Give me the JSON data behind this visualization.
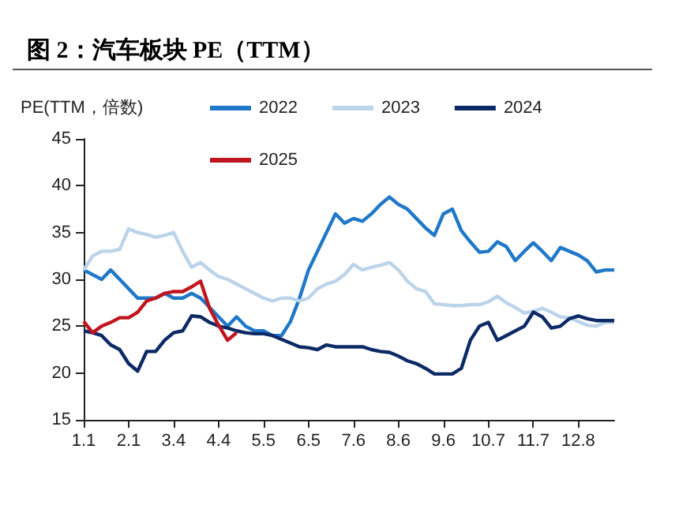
{
  "chart_data": {
    "type": "line",
    "title": "图 2：汽车板块 PE（TTM）",
    "ylabel": "PE(TTM，倍数)",
    "categories": [
      "1.1",
      null,
      null,
      null,
      null,
      "2.1",
      null,
      null,
      null,
      null,
      "3.4",
      null,
      null,
      null,
      null,
      "4.4",
      null,
      null,
      null,
      null,
      "5.5",
      null,
      null,
      null,
      null,
      "6.5",
      null,
      null,
      null,
      null,
      "7.6",
      null,
      null,
      null,
      null,
      "8.6",
      null,
      null,
      null,
      null,
      "9.6",
      null,
      null,
      null,
      null,
      "10.7",
      null,
      null,
      null,
      null,
      "11.7",
      null,
      null,
      null,
      null,
      "12.8",
      null,
      null,
      null,
      null
    ],
    "series": [
      {
        "name": "2022",
        "color": "#1f78c8",
        "values": [
          31,
          30.5,
          30,
          31,
          30,
          29,
          28,
          28,
          28,
          28.5,
          28,
          28,
          28.5,
          28,
          27,
          26,
          25,
          26,
          25,
          24.5,
          24.5,
          24,
          24,
          25.5,
          28,
          31,
          33,
          35,
          37,
          36,
          36.5,
          36.2,
          37,
          38,
          38.8,
          38,
          37.5,
          36.5,
          35.5,
          34.7,
          37,
          37.5,
          35.2,
          34,
          32.9,
          33,
          34,
          33.5,
          32,
          33,
          33.9,
          33,
          32,
          33.4,
          33,
          32.6,
          32,
          30.8,
          31,
          31
        ]
      },
      {
        "name": "2023",
        "color": "#bcd4ea",
        "values": [
          31,
          32.5,
          33,
          33,
          33.2,
          35.4,
          35,
          34.8,
          34.5,
          34.7,
          35,
          33,
          31.3,
          31.8,
          31,
          30.3,
          30,
          29.5,
          29,
          28.5,
          28,
          27.7,
          28,
          28,
          27.7,
          28,
          29,
          29.5,
          29.8,
          30.5,
          31.6,
          31,
          31.3,
          31.5,
          31.8,
          31,
          29.8,
          29,
          28.7,
          27.4,
          27.3,
          27.2,
          27.2,
          27.3,
          27.3,
          27.6,
          28.2,
          27.5,
          27,
          26.4,
          26.6,
          26.9,
          26.5,
          26,
          25.9,
          25.5,
          25.1,
          25,
          25.4,
          25.4
        ]
      },
      {
        "name": "2024",
        "color": "#0d2a66",
        "values": [
          24.5,
          24.3,
          24,
          23,
          22.5,
          21,
          20.2,
          22.3,
          22.3,
          23.5,
          24.3,
          24.5,
          26.1,
          26,
          25.4,
          25,
          24.8,
          24.5,
          24.3,
          24.2,
          24.2,
          24,
          23.6,
          23.2,
          22.8,
          22.7,
          22.5,
          23,
          22.8,
          22.8,
          22.8,
          22.8,
          22.5,
          22.3,
          22.2,
          21.8,
          21.3,
          21,
          20.5,
          19.9,
          19.9,
          19.9,
          20.5,
          23.5,
          25,
          25.4,
          23.5,
          24,
          24.5,
          25,
          26.5,
          26,
          24.8,
          25,
          25.8,
          26.1,
          25.8,
          25.6,
          25.6,
          25.6
        ]
      },
      {
        "name": "2025",
        "color": "#c0141e",
        "values": [
          25.5,
          24.3,
          25,
          25.4,
          25.9,
          25.9,
          26.5,
          27.7,
          28,
          28.5,
          28.7,
          28.7,
          29.2,
          29.8,
          26.9,
          25.1,
          23.5,
          24.3,
          null,
          null,
          null,
          null,
          null,
          null,
          null,
          null,
          null,
          null,
          null,
          null,
          null,
          null,
          null,
          null,
          null,
          null,
          null,
          null,
          null,
          null,
          null,
          null,
          null,
          null,
          null,
          null,
          null,
          null,
          null,
          null,
          null,
          null,
          null,
          null,
          null,
          null,
          null,
          null,
          null,
          null
        ]
      }
    ],
    "ylim": [
      15,
      45
    ],
    "yticks": [
      15,
      20,
      25,
      30,
      35,
      40,
      45
    ],
    "grid": false,
    "legend": "top",
    "marker": "none",
    "line_style": "solid"
  }
}
